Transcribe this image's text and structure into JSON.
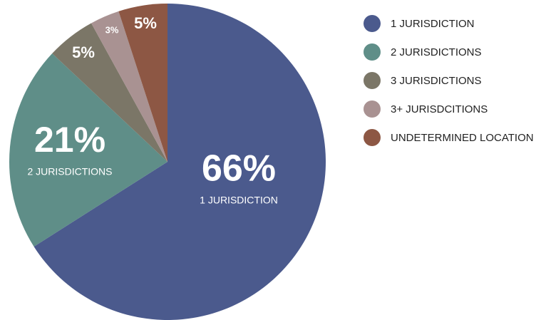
{
  "chart_data": {
    "type": "pie",
    "categories": [
      "1 JURISDICTION",
      "2 JURISDICTIONS",
      "3 JURISDICTIONS",
      "3+ JURISDCITIONS",
      "UNDETERMINED LOCATION"
    ],
    "values": [
      66,
      21,
      5,
      3,
      5
    ],
    "value_labels": [
      "66%",
      "21%",
      "5%",
      "3%",
      "5%"
    ],
    "colors": [
      "#4b5a8d",
      "#5f8e88",
      "#7b7667",
      "#a99292",
      "#8d5744"
    ],
    "legend": "right"
  }
}
